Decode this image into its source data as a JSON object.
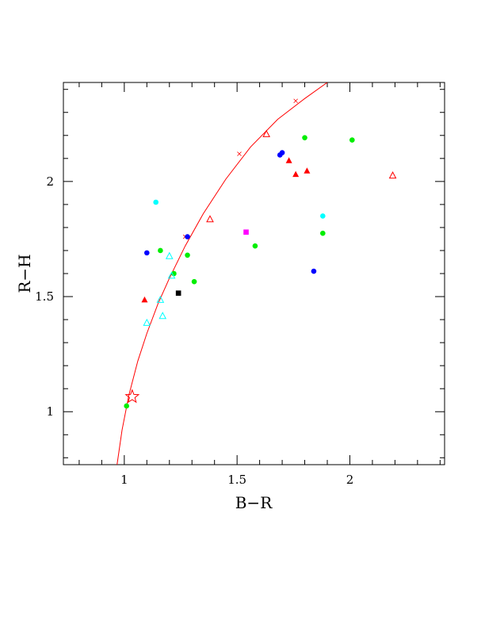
{
  "chart_data": {
    "type": "scatter",
    "title": "",
    "xlabel": "B−R",
    "ylabel": "R−H",
    "xlim": [
      0.73,
      2.42
    ],
    "ylim": [
      0.77,
      2.43
    ],
    "xticks": [
      {
        "value": 1,
        "label": "1"
      },
      {
        "value": 1.5,
        "label": "1.5"
      },
      {
        "value": 2,
        "label": "2"
      }
    ],
    "yticks": [
      {
        "value": 1,
        "label": "1"
      },
      {
        "value": 1.5,
        "label": "1.5"
      },
      {
        "value": 2,
        "label": "2"
      }
    ],
    "minor_step": 0.1,
    "grid": false,
    "series": [
      {
        "marker": "filled-circle",
        "color": "#00ee00",
        "points": [
          [
            1.01,
            1.025
          ],
          [
            1.16,
            1.7
          ],
          [
            1.28,
            1.68
          ],
          [
            1.22,
            1.6
          ],
          [
            1.31,
            1.565
          ],
          [
            1.58,
            1.72
          ],
          [
            1.8,
            2.19
          ],
          [
            1.88,
            1.775
          ],
          [
            2.01,
            2.18
          ]
        ]
      },
      {
        "marker": "filled-circle",
        "color": "#0000ff",
        "points": [
          [
            1.1,
            1.69
          ],
          [
            1.28,
            1.76
          ],
          [
            1.69,
            2.115
          ],
          [
            1.7,
            2.125
          ],
          [
            1.84,
            1.61
          ]
        ]
      },
      {
        "marker": "filled-circle",
        "color": "#00ffff",
        "points": [
          [
            1.14,
            1.91
          ],
          [
            1.88,
            1.85
          ]
        ]
      },
      {
        "marker": "filled-triangle",
        "color": "#ff0000",
        "points": [
          [
            1.09,
            1.485
          ],
          [
            1.73,
            2.09
          ],
          [
            1.76,
            2.03
          ],
          [
            1.81,
            2.045
          ]
        ]
      },
      {
        "marker": "open-triangle",
        "color": "#ff0000",
        "points": [
          [
            1.38,
            1.835
          ],
          [
            1.63,
            2.205
          ],
          [
            2.19,
            2.025
          ]
        ]
      },
      {
        "marker": "open-triangle",
        "color": "#00ffff",
        "points": [
          [
            1.1,
            1.385
          ],
          [
            1.16,
            1.485
          ],
          [
            1.17,
            1.415
          ],
          [
            1.2,
            1.675
          ],
          [
            1.21,
            1.59
          ]
        ]
      },
      {
        "marker": "filled-square",
        "color": "#000000",
        "points": [
          [
            1.24,
            1.515
          ]
        ]
      },
      {
        "marker": "filled-square",
        "color": "#ff00ff",
        "points": [
          [
            1.54,
            1.78
          ]
        ]
      },
      {
        "marker": "open-star",
        "color": "#ff0000",
        "points": [
          [
            1.035,
            1.065
          ]
        ]
      }
    ],
    "curve": {
      "color": "#ff0000",
      "points": [
        [
          0.968,
          0.77
        ],
        [
          0.99,
          0.92
        ],
        [
          1.02,
          1.07
        ],
        [
          1.06,
          1.22
        ],
        [
          1.1,
          1.34
        ],
        [
          1.15,
          1.47
        ],
        [
          1.2,
          1.58
        ],
        [
          1.27,
          1.72
        ],
        [
          1.35,
          1.86
        ],
        [
          1.45,
          2.01
        ],
        [
          1.56,
          2.15
        ],
        [
          1.68,
          2.27
        ],
        [
          1.8,
          2.36
        ],
        [
          1.9,
          2.43
        ]
      ],
      "cross_marks": [
        [
          1.27,
          1.76
        ],
        [
          1.51,
          2.12
        ],
        [
          1.76,
          2.35
        ]
      ]
    }
  }
}
